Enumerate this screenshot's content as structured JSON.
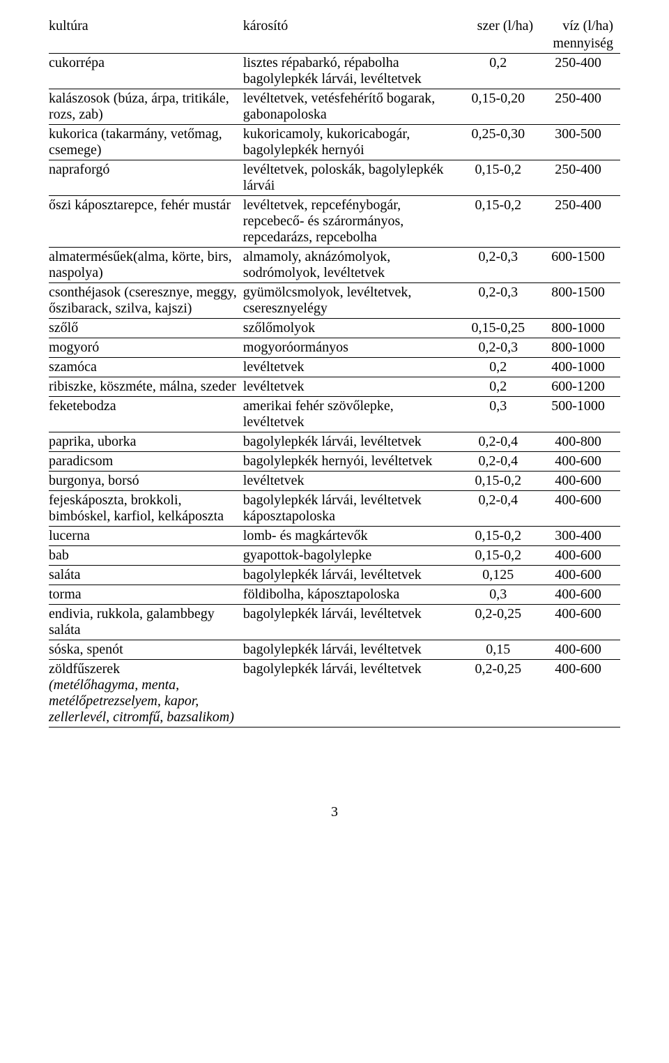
{
  "header": {
    "c1": "kultúra",
    "c2": "károsító",
    "c3": "szer (l/ha)",
    "c4": "víz (l/ha)",
    "c4sub": "mennyiség"
  },
  "rows": [
    {
      "c1": "cukorrépa",
      "c2": "lisztes répabarkó, répabolha bagolylepkék lárvái, levéltetvek",
      "c3": "0,2",
      "c4": "250-400"
    },
    {
      "c1": "kalászosok (búza, árpa, tritikále, rozs, zab)",
      "c2": "levéltetvek, vetésfehérítő bogarak, gabonapoloska",
      "c3": "0,15-0,20",
      "c4": "250-400"
    },
    {
      "c1": "kukorica (takarmány, vetőmag, csemege)",
      "c2": "kukoricamoly, kukoricabogár, bagolylepkék hernyói",
      "c3": "0,25-0,30",
      "c4": "300-500"
    },
    {
      "c1": "napraforgó",
      "c2": "levéltetvek, poloskák, bagolylepkék lárvái",
      "c3": "0,15-0,2",
      "c4": "250-400"
    },
    {
      "c1": "őszi káposztarepce, fehér mustár",
      "c2": "levéltetvek, repcefénybogár, repcebecő- és szárormányos, repcedarázs, repcebolha",
      "c3": "0,15-0,2",
      "c4": "250-400"
    },
    {
      "c1": "almatermésűek(alma, körte, birs, naspolya)",
      "c2": "almamoly, aknázómolyok, sodrómolyok, levéltetvek",
      "c3": "0,2-0,3",
      "c4": "600-1500"
    },
    {
      "c1": "csonthéjasok (cseresznye, meggy, őszibarack, szilva, kajszi)",
      "c2": "gyümölcsmolyok, levéltetvek, cseresznyelégy",
      "c3": "0,2-0,3",
      "c4": "800-1500"
    },
    {
      "c1": "szőlő",
      "c2": "szőlőmolyok",
      "c3": "0,15-0,25",
      "c4": "800-1000"
    },
    {
      "c1": "mogyoró",
      "c2": "mogyoróormányos",
      "c3": "0,2-0,3",
      "c4": "800-1000"
    },
    {
      "c1": "szamóca",
      "c2": "levéltetvek",
      "c3": "0,2",
      "c4": "400-1000"
    },
    {
      "c1": "ribiszke, köszméte, málna, szeder",
      "c2": "levéltetvek",
      "c3": "0,2",
      "c4": "600-1200"
    },
    {
      "c1": "feketebodza",
      "c2": "amerikai fehér szövőlepke, levéltetvek",
      "c3": "0,3",
      "c4": "500-1000"
    },
    {
      "c1": "paprika, uborka",
      "c2": "bagolylepkék lárvái, levéltetvek",
      "c3": "0,2-0,4",
      "c4": "400-800"
    },
    {
      "c1": "paradicsom",
      "c2": "bagolylepkék hernyói, levéltetvek",
      "c3": "0,2-0,4",
      "c4": "400-600"
    },
    {
      "c1": "burgonya, borsó",
      "c2": "levéltetvek",
      "c3": "0,15-0,2",
      "c4": "400-600"
    },
    {
      "c1": "fejeskáposzta, brokkoli, bimbóskel, karfiol, kelkáposzta",
      "c2": "bagolylepkék lárvái, levéltetvek káposztapoloska",
      "c3": "0,2-0,4",
      "c4": "400-600"
    },
    {
      "c1": "lucerna",
      "c2": "lomb- és magkártevők",
      "c3": "0,15-0,2",
      "c4": "300-400"
    },
    {
      "c1": "bab",
      "c2": "gyapottok-bagolylepke",
      "c3": "0,15-0,2",
      "c4": "400-600"
    },
    {
      "c1": "saláta",
      "c2": "bagolylepkék lárvái, levéltetvek",
      "c3": "0,125",
      "c4": "400-600"
    },
    {
      "c1": "torma",
      "c2": "földibolha, káposztapoloska",
      "c3": "0,3",
      "c4": "400-600"
    },
    {
      "c1": "endivia, rukkola, galambbegy saláta",
      "c2": "bagolylepkék lárvái, levéltetvek",
      "c3": "0,2-0,25",
      "c4": "400-600"
    },
    {
      "c1": "sóska, spenót",
      "c2": "bagolylepkék lárvái, levéltetvek",
      "c3": "0,15",
      "c4": "400-600"
    },
    {
      "c1": "zöldfűszerek",
      "c1_note": "(metélőhagyma, menta, metélőpetrezselyem, kapor, zellerlevél, citromfű, bazsalikom)",
      "c2": "bagolylepkék lárvái, levéltetvek",
      "c3": "0,2-0,25",
      "c4": "400-600"
    }
  ],
  "pagenum": "3"
}
